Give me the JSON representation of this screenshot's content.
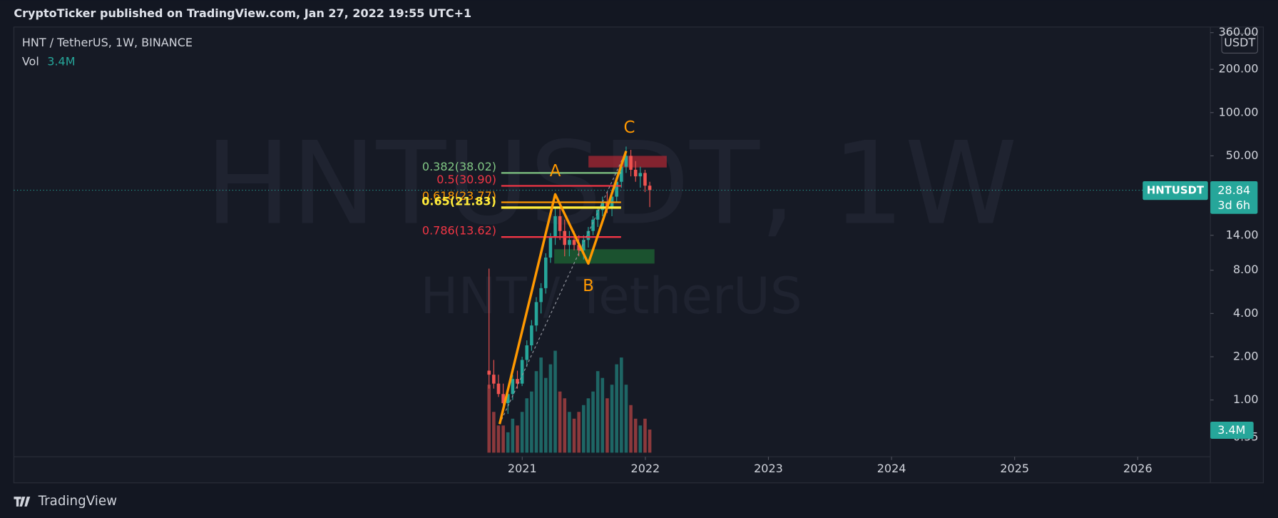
{
  "header": {
    "publisher": "CryptoTicker published on TradingView.com, Jan 27, 2022 19:55 UTC+1"
  },
  "legend": {
    "symbol": "HNT / TetherUS, 1W, BINANCE",
    "vol_label": "Vol"
  },
  "watermark": {
    "main": "HNTUSDT, 1W",
    "sub": "HNT / TetherUS"
  },
  "chart_data": {
    "type": "candlestick",
    "log_scale": true,
    "ylim": [
      0.43,
      394
    ],
    "yticks": [
      {
        "value": 360,
        "label": "360.00"
      },
      {
        "value": 200,
        "label": "200.00"
      },
      {
        "value": 100,
        "label": "100.00"
      },
      {
        "value": 50,
        "label": "50.00"
      },
      {
        "value": 14,
        "label": "14.00"
      },
      {
        "value": 8,
        "label": "8.00"
      },
      {
        "value": 4,
        "label": "4.00"
      },
      {
        "value": 2,
        "label": "2.00"
      },
      {
        "value": 1,
        "label": "1.00"
      },
      {
        "value": 0.55,
        "label": "0.55"
      }
    ],
    "xlim": [
      2016.87,
      2026.59
    ],
    "xticks": [
      2021,
      2022,
      2023,
      2024,
      2025,
      2026
    ],
    "currency": "USDT",
    "colors": {
      "up": "#26a69a",
      "down": "#ef5350"
    },
    "candles": [
      {
        "o": 1.6,
        "h": 8.2,
        "l": 1.2,
        "c": 1.5
      },
      {
        "o": 1.5,
        "h": 1.9,
        "l": 1.2,
        "c": 1.3
      },
      {
        "o": 1.3,
        "h": 1.5,
        "l": 1.05,
        "c": 1.1
      },
      {
        "o": 1.1,
        "h": 1.3,
        "l": 0.85,
        "c": 0.95
      },
      {
        "o": 0.95,
        "h": 1.2,
        "l": 0.8,
        "c": 1.1
      },
      {
        "o": 1.1,
        "h": 1.5,
        "l": 1.0,
        "c": 1.4
      },
      {
        "o": 1.4,
        "h": 1.6,
        "l": 1.2,
        "c": 1.3
      },
      {
        "o": 1.3,
        "h": 2.0,
        "l": 1.25,
        "c": 1.9
      },
      {
        "o": 1.9,
        "h": 2.6,
        "l": 1.7,
        "c": 2.4
      },
      {
        "o": 2.4,
        "h": 3.6,
        "l": 2.2,
        "c": 3.3
      },
      {
        "o": 3.3,
        "h": 5.2,
        "l": 3.0,
        "c": 4.8
      },
      {
        "o": 4.8,
        "h": 6.5,
        "l": 4.0,
        "c": 6.0
      },
      {
        "o": 6.0,
        "h": 10.5,
        "l": 5.5,
        "c": 9.8
      },
      {
        "o": 9.8,
        "h": 14.5,
        "l": 9.0,
        "c": 13.5
      },
      {
        "o": 13.5,
        "h": 22,
        "l": 12,
        "c": 19
      },
      {
        "o": 19,
        "h": 23,
        "l": 13,
        "c": 15
      },
      {
        "o": 15,
        "h": 18,
        "l": 10,
        "c": 12
      },
      {
        "o": 12,
        "h": 15,
        "l": 10,
        "c": 13
      },
      {
        "o": 13,
        "h": 15,
        "l": 11,
        "c": 12
      },
      {
        "o": 12,
        "h": 14,
        "l": 10,
        "c": 11
      },
      {
        "o": 11,
        "h": 14,
        "l": 9.5,
        "c": 13
      },
      {
        "o": 13,
        "h": 16,
        "l": 11.5,
        "c": 15
      },
      {
        "o": 15,
        "h": 19,
        "l": 14,
        "c": 18
      },
      {
        "o": 18,
        "h": 22,
        "l": 16,
        "c": 21
      },
      {
        "o": 21,
        "h": 26,
        "l": 19,
        "c": 24
      },
      {
        "o": 24,
        "h": 28,
        "l": 20,
        "c": 22
      },
      {
        "o": 22,
        "h": 27,
        "l": 19,
        "c": 26
      },
      {
        "o": 26,
        "h": 35,
        "l": 24,
        "c": 33
      },
      {
        "o": 33,
        "h": 45,
        "l": 30,
        "c": 42
      },
      {
        "o": 42,
        "h": 58,
        "l": 38,
        "c": 50
      },
      {
        "o": 50,
        "h": 55,
        "l": 36,
        "c": 40
      },
      {
        "o": 40,
        "h": 46,
        "l": 33,
        "c": 36
      },
      {
        "o": 36,
        "h": 42,
        "l": 30,
        "c": 38
      },
      {
        "o": 38,
        "h": 40,
        "l": 28,
        "c": 31
      },
      {
        "o": 31,
        "h": 33,
        "l": 22,
        "c": 28.84
      }
    ],
    "volume": [
      10000000,
      6000000,
      4000000,
      4000000,
      3000000,
      5000000,
      4000000,
      6000000,
      8000000,
      9000000,
      12000000,
      14000000,
      11000000,
      13000000,
      15000000,
      9000000,
      8000000,
      6000000,
      5000000,
      6000000,
      7000000,
      8000000,
      9000000,
      12000000,
      11000000,
      8000000,
      10000000,
      13000000,
      14000000,
      10000000,
      7000000,
      5000000,
      4000000,
      5000000,
      3400000
    ],
    "volume_label": "3.4M",
    "last_price": {
      "symbol": "HNTUSDT",
      "value": 28.84,
      "countdown": "3d 6h"
    },
    "fib": [
      {
        "label": "0.382(38.02)",
        "price": 38.02,
        "color": "#81c784"
      },
      {
        "label": "0.5(30.90)",
        "price": 30.9,
        "color": "#f23645"
      },
      {
        "label": "0.618(23.77)",
        "price": 23.77,
        "color": "#ff9800"
      },
      {
        "label": "0.65(21.83)",
        "price": 21.83,
        "color": "#ffeb3b"
      },
      {
        "label": "0.786(13.62)",
        "price": 13.62,
        "color": "#f23645"
      }
    ],
    "zones": [
      {
        "top": 50,
        "bottom": 41.5,
        "color": "#b22833"
      },
      {
        "top": 11.2,
        "bottom": 8.9,
        "color": "#1e6b33"
      }
    ],
    "wave": {
      "labels": [
        "A",
        "B",
        "C"
      ],
      "prices": [
        0.68,
        27,
        8.9,
        54
      ],
      "color": "#ff9800"
    }
  },
  "footer": {
    "brand": "TradingView"
  }
}
